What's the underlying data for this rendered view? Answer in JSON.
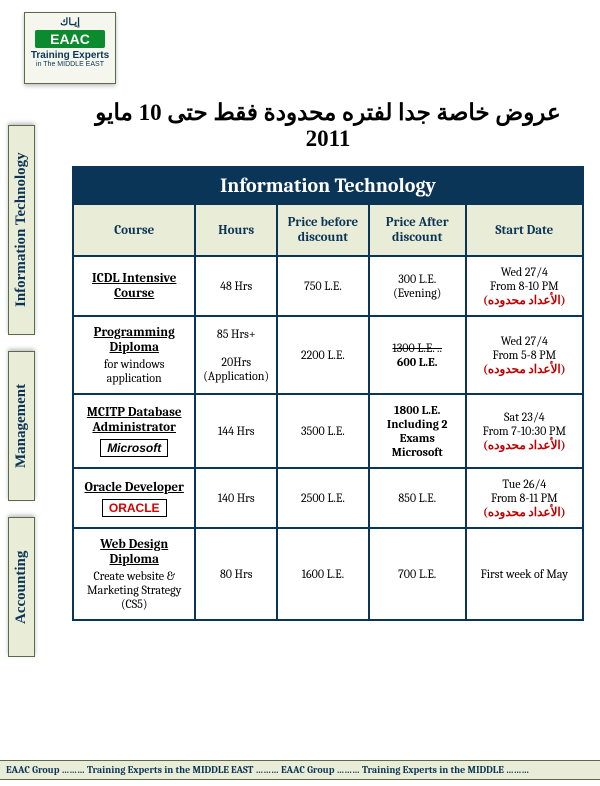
{
  "logo": {
    "arabic": "إيـاك",
    "brand": "EAAC",
    "line1": "Training Experts",
    "line2": "in The MIDDLE EAST"
  },
  "sidebar": {
    "items": [
      "Information Technology",
      "Management",
      "Accounting"
    ]
  },
  "headline": "عروض خاصة جدا لفتره محدودة فقط حتى 10 مايو 2011",
  "table": {
    "title": "Information Technology",
    "columns": [
      "Course",
      "Hours",
      "Price before discount",
      "Price After discount",
      "Start Date"
    ],
    "col_widths": [
      "24%",
      "16%",
      "18%",
      "19%",
      "23%"
    ],
    "header_bg": "#0b3556",
    "header_fg": "#ffffff",
    "subheader_bg": "#e9ecd7",
    "border_color": "#0b3556",
    "limited_text": "(الأعداد محدوده)",
    "rows": [
      {
        "course": "ICDL Intensive Course",
        "course_sub": "",
        "brand": "",
        "hours": "48 Hrs",
        "before": "750 L.E.",
        "after_strike": "",
        "after_main": "300 L.E. (Evening)",
        "after_bold": false,
        "date1": "Wed 27/4",
        "date2": "From 8-10 PM",
        "limited": true
      },
      {
        "course": "Programming Diploma",
        "course_sub": "for windows application",
        "brand": "",
        "hours": "85 Hrs+\n20Hrs (Application)",
        "before": "2200 L.E.",
        "after_strike": "1300 L.E. ..",
        "after_main": "600 L.E.",
        "after_bold": true,
        "date1": "Wed 27/4",
        "date2": "From 5-8 PM",
        "limited": true
      },
      {
        "course": "MCITP Database Administrator",
        "course_sub": "",
        "brand": "Microsoft",
        "hours": "144 Hrs",
        "before": "3500 L.E.",
        "after_strike": "",
        "after_main": "1800 L.E. Including 2 Exams Microsoft",
        "after_bold": true,
        "date1": "Sat 23/4",
        "date2": "From 7-10:30  PM",
        "limited": true
      },
      {
        "course": "Oracle Developer",
        "course_sub": "",
        "brand": "ORACLE",
        "hours": "140 Hrs",
        "before": "2500 L.E.",
        "after_strike": "",
        "after_main": "850 L.E.",
        "after_bold": false,
        "date1": "Tue 26/4",
        "date2": "From 8-11 PM",
        "limited": true
      },
      {
        "course": "Web Design Diploma",
        "course_sub": "Create website & Marketing Strategy (CS5)",
        "brand": "",
        "hours": "80 Hrs",
        "before": "1600 L.E.",
        "after_strike": "",
        "after_main": "700 L.E.",
        "after_bold": false,
        "date1": "First week of May",
        "date2": "",
        "limited": false
      }
    ]
  },
  "footer": "EAAC Group ……… Training Experts in the MIDDLE EAST ………               EAAC Group  ……… Training Experts in the MIDDLE ………"
}
